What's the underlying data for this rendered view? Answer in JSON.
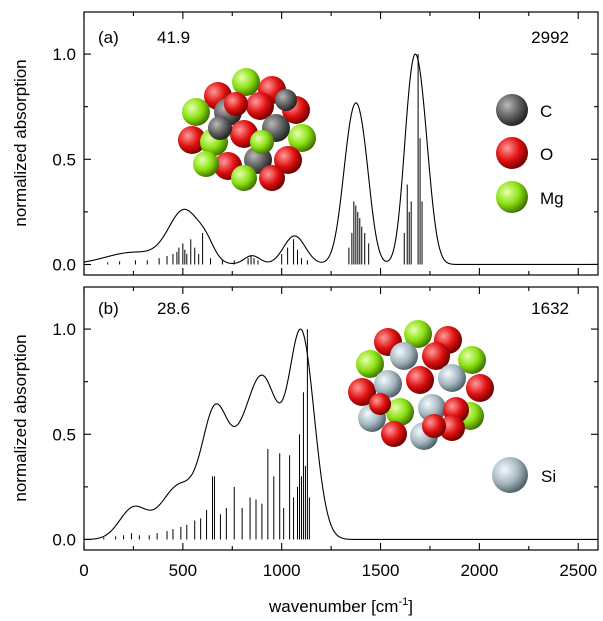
{
  "chart_data": [
    {
      "type": "line",
      "panel_label": "(a)",
      "annotation_left": "41.9",
      "annotation_right": "2992",
      "ylabel": "normalized absorption",
      "xlim": [
        0,
        2600
      ],
      "ylim": [
        -0.05,
        1.2
      ],
      "yticks": [
        "0.0",
        "0.5",
        "1.0"
      ],
      "yticks_values": [
        0,
        0.5,
        1.0
      ],
      "curve": {
        "baseline": [
          0,
          0.0,
          0.0
        ],
        "peaks": [
          [
            250,
            0.055,
            140
          ],
          [
            510,
            0.24,
            80
          ],
          [
            620,
            0.05,
            40
          ],
          [
            850,
            0.04,
            40
          ],
          [
            1065,
            0.13,
            55
          ],
          [
            1360,
            0.63,
            50
          ],
          [
            1420,
            0.25,
            40
          ],
          [
            1650,
            0.55,
            40
          ],
          [
            1705,
            0.63,
            45
          ]
        ]
      },
      "sticks": [
        [
          120,
          0.01
        ],
        [
          180,
          0.015
        ],
        [
          260,
          0.02
        ],
        [
          320,
          0.02
        ],
        [
          380,
          0.03
        ],
        [
          420,
          0.04
        ],
        [
          450,
          0.05
        ],
        [
          470,
          0.06
        ],
        [
          480,
          0.08
        ],
        [
          500,
          0.1
        ],
        [
          510,
          0.07
        ],
        [
          520,
          0.05
        ],
        [
          540,
          0.12
        ],
        [
          560,
          0.08
        ],
        [
          580,
          0.05
        ],
        [
          600,
          0.15
        ],
        [
          640,
          0.03
        ],
        [
          700,
          0.02
        ],
        [
          760,
          0.02
        ],
        [
          830,
          0.03
        ],
        [
          845,
          0.04
        ],
        [
          860,
          0.03
        ],
        [
          880,
          0.02
        ],
        [
          1000,
          0.05
        ],
        [
          1030,
          0.08
        ],
        [
          1060,
          0.12
        ],
        [
          1080,
          0.07
        ],
        [
          1100,
          0.03
        ],
        [
          1130,
          0.02
        ],
        [
          1340,
          0.08
        ],
        [
          1355,
          0.15
        ],
        [
          1365,
          0.3
        ],
        [
          1375,
          0.28
        ],
        [
          1385,
          0.25
        ],
        [
          1395,
          0.22
        ],
        [
          1405,
          0.18
        ],
        [
          1420,
          0.15
        ],
        [
          1440,
          0.1
        ],
        [
          1620,
          0.15
        ],
        [
          1635,
          0.38
        ],
        [
          1645,
          0.25
        ],
        [
          1655,
          0.3
        ],
        [
          1690,
          1.0
        ],
        [
          1700,
          0.6
        ],
        [
          1710,
          0.3
        ]
      ],
      "legend": [
        {
          "label": "C",
          "color": "#5f5f5f"
        },
        {
          "label": "O",
          "color": "#e01010"
        },
        {
          "label": "Mg",
          "color": "#88e010"
        }
      ]
    },
    {
      "type": "line",
      "panel_label": "(b)",
      "annotation_left": "28.6",
      "annotation_right": "1632",
      "ylabel": "normalized absorption",
      "xlabel": "wavenumber [cm",
      "xlabel_sup": "-1",
      "xlabel_tail": "]",
      "xlim": [
        0,
        2600
      ],
      "ylim": [
        -0.05,
        1.2
      ],
      "xticks": [
        "0",
        "500",
        "1000",
        "1500",
        "2000",
        "2500"
      ],
      "xticks_values": [
        0,
        500,
        1000,
        1500,
        2000,
        2500
      ],
      "yticks": [
        "0.0",
        "0.5",
        "1.0"
      ],
      "yticks_values": [
        0,
        0.5,
        1.0
      ],
      "curve": {
        "peaks": [
          [
            250,
            0.14,
            70
          ],
          [
            480,
            0.24,
            90
          ],
          [
            660,
            0.5,
            65
          ],
          [
            830,
            0.45,
            90
          ],
          [
            930,
            0.44,
            70
          ],
          [
            1100,
            0.92,
            65
          ]
        ]
      },
      "sticks": [
        [
          100,
          0.01
        ],
        [
          160,
          0.015
        ],
        [
          200,
          0.02
        ],
        [
          240,
          0.03
        ],
        [
          280,
          0.02
        ],
        [
          330,
          0.02
        ],
        [
          370,
          0.03
        ],
        [
          420,
          0.04
        ],
        [
          450,
          0.05
        ],
        [
          490,
          0.06
        ],
        [
          520,
          0.07
        ],
        [
          560,
          0.09
        ],
        [
          590,
          0.1
        ],
        [
          620,
          0.14
        ],
        [
          650,
          0.3
        ],
        [
          660,
          0.3
        ],
        [
          690,
          0.12
        ],
        [
          720,
          0.15
        ],
        [
          760,
          0.25
        ],
        [
          800,
          0.15
        ],
        [
          840,
          0.2
        ],
        [
          870,
          0.19
        ],
        [
          900,
          0.17
        ],
        [
          930,
          0.43
        ],
        [
          960,
          0.3
        ],
        [
          990,
          0.41
        ],
        [
          1010,
          0.15
        ],
        [
          1040,
          0.4
        ],
        [
          1060,
          0.2
        ],
        [
          1080,
          0.25
        ],
        [
          1090,
          0.5
        ],
        [
          1100,
          0.3
        ],
        [
          1110,
          0.7
        ],
        [
          1120,
          0.35
        ],
        [
          1130,
          1.0
        ],
        [
          1140,
          0.2
        ]
      ],
      "legend": [
        {
          "label": "Si",
          "color": "#a6b8c0"
        }
      ]
    }
  ]
}
